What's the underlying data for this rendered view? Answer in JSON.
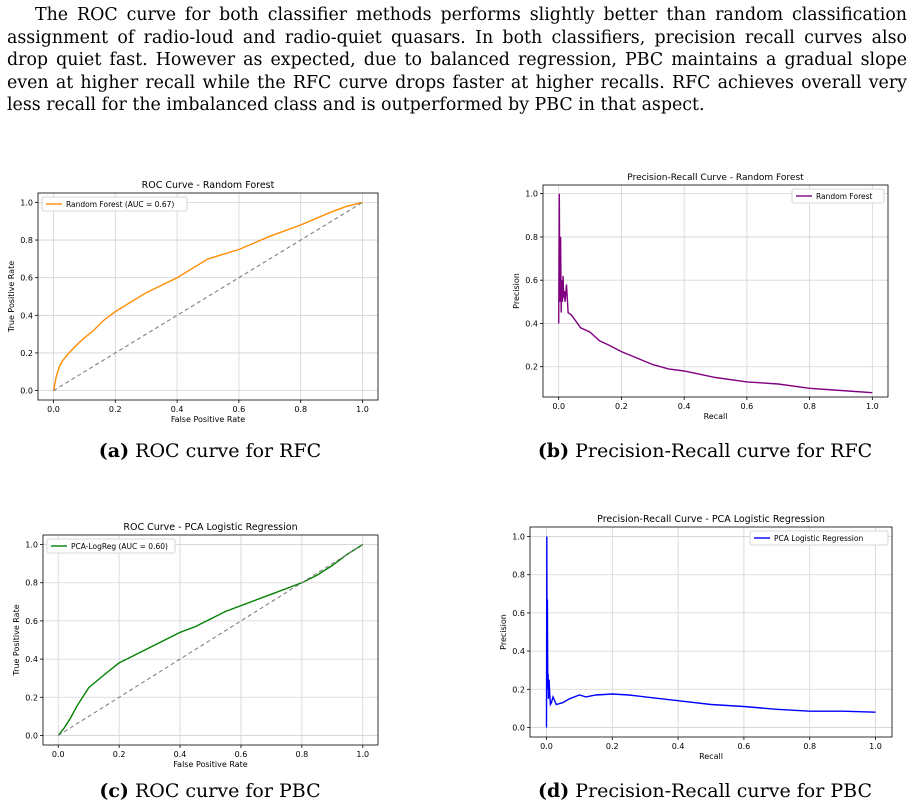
{
  "paragraph": "The ROC curve for both classifier methods performs slightly better than random classification assignment of radio-loud and radio-quiet quasars. In both classifiers, precision recall curves also drop quiet fast. However as expected, due to balanced regression, PBC maintains a gradual slope even at higher recall while the RFC curve drops faster at higher recalls. RFC achieves overall very less recall for the imbalanced class and is outperformed by PBC in that aspect.",
  "figures": [
    {
      "id": "a",
      "caption_label": "(a)",
      "caption_text": " ROC curve for RFC"
    },
    {
      "id": "b",
      "caption_label": "(b)",
      "caption_text": " Precision-Recall curve for RFC"
    },
    {
      "id": "c",
      "caption_label": "(c)",
      "caption_text": " ROC curve for PBC"
    },
    {
      "id": "d",
      "caption_label": "(d)",
      "caption_text": " Precision-Recall curve for PBC"
    }
  ],
  "colors": {
    "rfc": "#ff8c00",
    "rfc_pr": "#800080",
    "pbc": "#008000",
    "pbc_pr": "#0000ff",
    "diagonal": "#808080",
    "grid": "#d3d3d3"
  },
  "chart_data": [
    {
      "id": "a",
      "type": "line",
      "title": "ROC Curve - Random Forest",
      "xlabel": "False Positive Rate",
      "ylabel": "True Positive Rate",
      "xlim": [
        -0.05,
        1.05
      ],
      "ylim": [
        -0.05,
        1.05
      ],
      "xticks": [
        0.0,
        0.2,
        0.4,
        0.6,
        0.8,
        1.0
      ],
      "yticks": [
        0.0,
        0.2,
        0.4,
        0.6,
        0.8,
        1.0
      ],
      "xticklabels": [
        "0.0",
        "0.2",
        "0.4",
        "0.6",
        "0.8",
        "1.0"
      ],
      "yticklabels": [
        "0.0",
        "0.2",
        "0.4",
        "0.6",
        "0.8",
        "1.0"
      ],
      "grid": true,
      "legend": "upper left",
      "series": [
        {
          "name": "Random Forest (AUC = 0.67)",
          "color": "#ff8c00",
          "x": [
            0,
            0.01,
            0.02,
            0.03,
            0.05,
            0.08,
            0.1,
            0.13,
            0.16,
            0.2,
            0.25,
            0.3,
            0.35,
            0.4,
            0.45,
            0.5,
            0.6,
            0.7,
            0.8,
            0.9,
            0.95,
            1.0
          ],
          "y": [
            0,
            0.08,
            0.13,
            0.16,
            0.2,
            0.25,
            0.28,
            0.32,
            0.37,
            0.42,
            0.47,
            0.52,
            0.56,
            0.6,
            0.65,
            0.7,
            0.75,
            0.82,
            0.88,
            0.95,
            0.98,
            1.0
          ]
        },
        {
          "name": "",
          "color": "#808080",
          "dashed": true,
          "x": [
            0,
            1
          ],
          "y": [
            0,
            1
          ]
        }
      ]
    },
    {
      "id": "b",
      "type": "line",
      "title": "Precision-Recall Curve - Random Forest",
      "xlabel": "Recall",
      "ylabel": "Precision",
      "xlim": [
        -0.05,
        1.05
      ],
      "ylim": [
        0.06,
        1.04
      ],
      "xticks": [
        0.0,
        0.2,
        0.4,
        0.6,
        0.8,
        1.0
      ],
      "yticks": [
        0.2,
        0.4,
        0.6,
        0.8,
        1.0
      ],
      "xticklabels": [
        "0.0",
        "0.2",
        "0.4",
        "0.6",
        "0.8",
        "1.0"
      ],
      "yticklabels": [
        "0.2",
        "0.4",
        "0.6",
        "0.8",
        "1.0"
      ],
      "grid": true,
      "legend": "upper right",
      "series": [
        {
          "name": "Random Forest",
          "color": "#800080",
          "x": [
            0,
            0.002,
            0.004,
            0.006,
            0.008,
            0.01,
            0.012,
            0.014,
            0.016,
            0.018,
            0.02,
            0.025,
            0.03,
            0.04,
            0.05,
            0.07,
            0.1,
            0.13,
            0.16,
            0.2,
            0.25,
            0.3,
            0.35,
            0.4,
            0.5,
            0.6,
            0.7,
            0.8,
            0.9,
            1.0
          ],
          "y": [
            0.4,
            1.0,
            0.5,
            0.8,
            0.45,
            0.6,
            0.5,
            0.62,
            0.52,
            0.55,
            0.5,
            0.58,
            0.45,
            0.44,
            0.42,
            0.38,
            0.36,
            0.32,
            0.3,
            0.27,
            0.24,
            0.21,
            0.19,
            0.18,
            0.15,
            0.13,
            0.12,
            0.1,
            0.09,
            0.08
          ]
        }
      ]
    },
    {
      "id": "c",
      "type": "line",
      "title": "ROC Curve - PCA Logistic Regression",
      "xlabel": "False Positive Rate",
      "ylabel": "True Positive Rate",
      "xlim": [
        -0.05,
        1.05
      ],
      "ylim": [
        -0.05,
        1.05
      ],
      "xticks": [
        0.0,
        0.2,
        0.4,
        0.6,
        0.8,
        1.0
      ],
      "yticks": [
        0.0,
        0.2,
        0.4,
        0.6,
        0.8,
        1.0
      ],
      "xticklabels": [
        "0.0",
        "0.2",
        "0.4",
        "0.6",
        "0.8",
        "1.0"
      ],
      "yticklabels": [
        "0.0",
        "0.2",
        "0.4",
        "0.6",
        "0.8",
        "1.0"
      ],
      "grid": true,
      "legend": "upper left",
      "series": [
        {
          "name": "PCA-LogReg (AUC = 0.60)",
          "color": "#008000",
          "x": [
            0,
            0.02,
            0.04,
            0.06,
            0.08,
            0.1,
            0.13,
            0.16,
            0.2,
            0.25,
            0.3,
            0.35,
            0.4,
            0.45,
            0.5,
            0.55,
            0.6,
            0.65,
            0.7,
            0.75,
            0.8,
            0.85,
            0.9,
            0.95,
            1.0
          ],
          "y": [
            0,
            0.04,
            0.09,
            0.15,
            0.2,
            0.25,
            0.29,
            0.33,
            0.38,
            0.42,
            0.46,
            0.5,
            0.54,
            0.57,
            0.61,
            0.65,
            0.68,
            0.71,
            0.74,
            0.77,
            0.8,
            0.84,
            0.89,
            0.95,
            1.0
          ]
        },
        {
          "name": "",
          "color": "#808080",
          "dashed": true,
          "x": [
            0,
            1
          ],
          "y": [
            0,
            1
          ]
        }
      ]
    },
    {
      "id": "d",
      "type": "line",
      "title": "Precision-Recall Curve - PCA Logistic Regression",
      "xlabel": "Recall",
      "ylabel": "Precision",
      "xlim": [
        -0.05,
        1.05
      ],
      "ylim": [
        -0.05,
        1.05
      ],
      "xticks": [
        0.0,
        0.2,
        0.4,
        0.6,
        0.8,
        1.0
      ],
      "yticks": [
        0.0,
        0.2,
        0.4,
        0.6,
        0.8,
        1.0
      ],
      "xticklabels": [
        "0.0",
        "0.2",
        "0.4",
        "0.6",
        "0.8",
        "1.0"
      ],
      "yticklabels": [
        "0.0",
        "0.2",
        "0.4",
        "0.6",
        "0.8",
        "1.0"
      ],
      "grid": true,
      "legend": "upper right",
      "series": [
        {
          "name": "PCA Logistic Regression",
          "color": "#0000ff",
          "x": [
            0,
            0.001,
            0.002,
            0.003,
            0.004,
            0.005,
            0.006,
            0.008,
            0.01,
            0.012,
            0.015,
            0.02,
            0.03,
            0.05,
            0.07,
            0.1,
            0.12,
            0.15,
            0.2,
            0.25,
            0.3,
            0.35,
            0.4,
            0.5,
            0.6,
            0.7,
            0.8,
            0.9,
            1.0
          ],
          "y": [
            0,
            1.0,
            0.3,
            0.67,
            0.2,
            0.28,
            0.15,
            0.25,
            0.18,
            0.12,
            0.13,
            0.16,
            0.12,
            0.13,
            0.15,
            0.17,
            0.16,
            0.17,
            0.175,
            0.17,
            0.16,
            0.15,
            0.14,
            0.12,
            0.11,
            0.095,
            0.085,
            0.085,
            0.08
          ]
        }
      ]
    }
  ]
}
